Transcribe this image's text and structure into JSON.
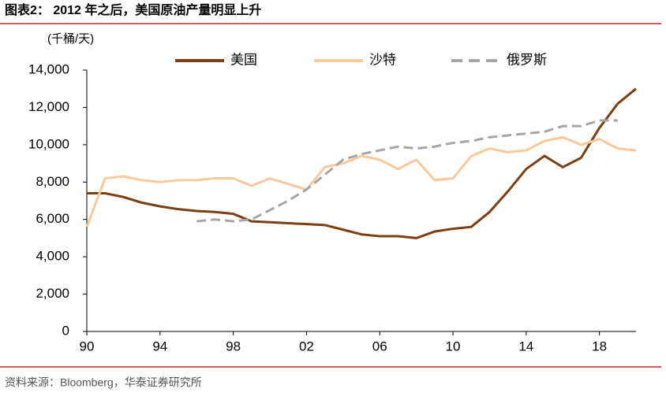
{
  "chart_data": {
    "type": "line",
    "title": "图表2：  2012 年之后，美国原油产量明显上升",
    "y_label": "(千桶/天)",
    "source": "资料来源：Bloomberg，华泰证券研究所",
    "xlim": [
      1990,
      2020
    ],
    "xticks": [
      {
        "value": 1990,
        "label": "90"
      },
      {
        "value": 1994,
        "label": "94"
      },
      {
        "value": 1998,
        "label": "98"
      },
      {
        "value": 2002,
        "label": "02"
      },
      {
        "value": 2006,
        "label": "06"
      },
      {
        "value": 2010,
        "label": "10"
      },
      {
        "value": 2014,
        "label": "14"
      },
      {
        "value": 2018,
        "label": "18"
      }
    ],
    "ylim": [
      0,
      14000
    ],
    "yticks": [
      0,
      {
        "value": 2000,
        "label": "2,000"
      },
      {
        "value": 4000,
        "label": "4,000"
      },
      {
        "value": 6000,
        "label": "6,000"
      },
      {
        "value": 8000,
        "label": "8,000"
      },
      {
        "value": 10000,
        "label": "10,000"
      },
      {
        "value": 12000,
        "label": "12,000"
      },
      {
        "value": 14000,
        "label": "14,000"
      }
    ],
    "series": [
      {
        "name": "美国",
        "color": "#7b3f12",
        "dash": false,
        "x": [
          1990,
          1991,
          1992,
          1993,
          1994,
          1995,
          1996,
          1997,
          1998,
          1999,
          2000,
          2001,
          2002,
          2003,
          2004,
          2005,
          2006,
          2007,
          2008,
          2009,
          2010,
          2011,
          2012,
          2013,
          2014,
          2015,
          2016,
          2017,
          2018,
          2019,
          2020
        ],
        "values": [
          7400,
          7400,
          7200,
          6900,
          6700,
          6550,
          6450,
          6400,
          6300,
          5900,
          5850,
          5800,
          5750,
          5700,
          5450,
          5200,
          5100,
          5100,
          5000,
          5350,
          5500,
          5600,
          6400,
          7500,
          8700,
          9400,
          8800,
          9300,
          10900,
          12200,
          13000
        ]
      },
      {
        "name": "沙特",
        "color": "#f9c99a",
        "dash": false,
        "x": [
          1990,
          1991,
          1992,
          1993,
          1994,
          1995,
          1996,
          1997,
          1998,
          1999,
          2000,
          2001,
          2002,
          2003,
          2004,
          2005,
          2006,
          2007,
          2008,
          2009,
          2010,
          2011,
          2012,
          2013,
          2014,
          2015,
          2016,
          2017,
          2018,
          2019,
          2020
        ],
        "values": [
          5600,
          8200,
          8300,
          8100,
          8000,
          8100,
          8100,
          8200,
          8200,
          7800,
          8200,
          7900,
          7600,
          8800,
          9000,
          9400,
          9200,
          8700,
          9200,
          8100,
          8200,
          9400,
          9800,
          9600,
          9700,
          10200,
          10400,
          10000,
          10300,
          9800,
          9700
        ]
      },
      {
        "name": "俄罗斯",
        "color": "#a6a6a6",
        "dash": true,
        "x": [
          1996,
          1997,
          1998,
          1999,
          2000,
          2001,
          2002,
          2003,
          2004,
          2005,
          2006,
          2007,
          2008,
          2009,
          2010,
          2011,
          2012,
          2013,
          2014,
          2015,
          2016,
          2017,
          2018,
          2019
        ],
        "values": [
          5900,
          6000,
          5900,
          6000,
          6500,
          7000,
          7600,
          8400,
          9200,
          9500,
          9700,
          9900,
          9800,
          9900,
          10100,
          10200,
          10400,
          10500,
          10600,
          10700,
          11000,
          11000,
          11300,
          11300
        ]
      }
    ]
  }
}
